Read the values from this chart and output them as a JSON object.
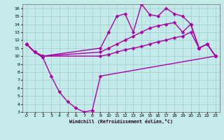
{
  "xlabel": "Windchill (Refroidissement éolien,°C)",
  "xlim": [
    -0.5,
    23.5
  ],
  "ylim": [
    3,
    16.5
  ],
  "xtick_labels": [
    "0",
    "1",
    "2",
    "3",
    "4",
    "5",
    "6",
    "7",
    "8",
    "9",
    "10",
    "11",
    "12",
    "13",
    "14",
    "15",
    "16",
    "17",
    "18",
    "19",
    "20",
    "21",
    "22",
    "23"
  ],
  "xtick_vals": [
    0,
    1,
    2,
    3,
    4,
    5,
    6,
    7,
    8,
    9,
    10,
    11,
    12,
    13,
    14,
    15,
    16,
    17,
    18,
    19,
    20,
    21,
    22,
    23
  ],
  "ytick_vals": [
    3,
    4,
    5,
    6,
    7,
    8,
    9,
    10,
    11,
    12,
    13,
    14,
    15,
    16
  ],
  "background_color": "#c5eaea",
  "grid_color": "#a0cccc",
  "line_color": "#aa00aa",
  "line_width": 1.0,
  "marker": "D",
  "marker_size": 2.5,
  "series": [
    {
      "x": [
        0,
        1,
        2,
        3,
        4,
        5,
        6,
        7,
        8,
        9,
        23
      ],
      "y": [
        11.5,
        10.5,
        9.8,
        7.5,
        5.5,
        4.3,
        3.5,
        3.0,
        3.2,
        7.5,
        10.0
      ]
    },
    {
      "x": [
        0,
        1,
        2,
        9,
        10,
        11,
        12,
        13,
        14,
        15,
        16,
        17,
        18,
        19,
        20,
        21,
        22,
        23
      ],
      "y": [
        11.5,
        10.5,
        10.0,
        10.0,
        10.2,
        10.5,
        10.8,
        11.0,
        11.2,
        11.5,
        11.8,
        12.0,
        12.3,
        12.5,
        13.0,
        11.0,
        11.5,
        10.0
      ]
    },
    {
      "x": [
        0,
        1,
        2,
        9,
        10,
        11,
        12,
        13,
        14,
        15,
        16,
        17,
        18,
        19,
        20,
        21,
        22,
        23
      ],
      "y": [
        11.5,
        10.5,
        10.0,
        10.5,
        11.0,
        11.5,
        12.0,
        12.5,
        13.0,
        13.5,
        13.8,
        14.0,
        14.2,
        13.0,
        14.0,
        11.0,
        11.5,
        10.0
      ]
    },
    {
      "x": [
        0,
        1,
        2,
        9,
        10,
        11,
        12,
        13,
        14,
        15,
        16,
        17,
        18,
        19,
        20,
        21,
        22,
        23
      ],
      "y": [
        11.5,
        10.5,
        10.0,
        11.0,
        13.0,
        15.0,
        15.3,
        13.0,
        16.5,
        15.2,
        15.0,
        16.0,
        15.3,
        15.0,
        14.0,
        11.0,
        11.5,
        10.0
      ]
    }
  ]
}
